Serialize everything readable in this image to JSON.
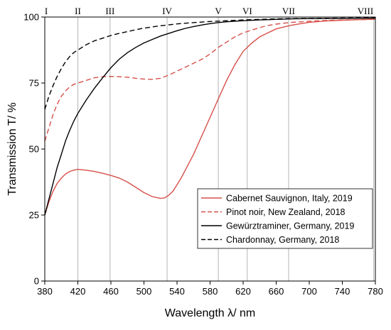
{
  "chart_data": {
    "type": "line",
    "xlabel": "Wavelength λ/ nm",
    "ylabel": "Transmission T/ %",
    "xlim": [
      380,
      780
    ],
    "ylim": [
      0,
      100
    ],
    "x_ticks": [
      380,
      420,
      460,
      500,
      540,
      580,
      620,
      660,
      700,
      740,
      780
    ],
    "y_ticks": [
      0,
      25,
      50,
      75,
      100
    ],
    "grid": "vertical reference lines only at marked wavelengths",
    "legend_position": "bottom-right",
    "reference_lines": [
      {
        "label": "I",
        "x": 380
      },
      {
        "label": "II",
        "x": 420
      },
      {
        "label": "III",
        "x": 459
      },
      {
        "label": "IV",
        "x": 528
      },
      {
        "label": "V",
        "x": 590
      },
      {
        "label": "VI",
        "x": 625
      },
      {
        "label": "VII",
        "x": 675
      },
      {
        "label": "VIII",
        "x": 778
      }
    ],
    "series": [
      {
        "name": "Cabernet Sauvignon, Italy, 2019",
        "color": "#d6504a",
        "dash": "solid",
        "x": [
          380,
          385,
          390,
          395,
          400,
          405,
          410,
          415,
          420,
          430,
          440,
          450,
          460,
          470,
          480,
          490,
          500,
          510,
          520,
          525,
          530,
          535,
          540,
          545,
          550,
          560,
          570,
          580,
          590,
          600,
          610,
          620,
          630,
          640,
          650,
          660,
          670,
          680,
          690,
          700,
          720,
          740,
          760,
          780
        ],
        "y": [
          25,
          30,
          34,
          37,
          39,
          40.5,
          41.5,
          42,
          42.3,
          42,
          41.5,
          40.8,
          40,
          39,
          37.5,
          35.5,
          33.5,
          32,
          31.3,
          31.5,
          32.5,
          34,
          36.5,
          39,
          42,
          48,
          55,
          62,
          69,
          76,
          82,
          87,
          90,
          92.5,
          94,
          95.5,
          96.3,
          97,
          97.5,
          98,
          98.5,
          98.8,
          99,
          99.2
        ]
      },
      {
        "name": "Pinot noir, New Zealand, 2018",
        "color": "#d6504a",
        "dash": "dashed",
        "x": [
          380,
          385,
          390,
          395,
          400,
          405,
          410,
          415,
          420,
          430,
          440,
          450,
          460,
          470,
          480,
          490,
          500,
          510,
          520,
          530,
          540,
          550,
          560,
          570,
          580,
          590,
          600,
          610,
          620,
          630,
          640,
          650,
          660,
          670,
          680,
          700,
          720,
          740,
          760,
          780
        ],
        "y": [
          53,
          58,
          63,
          67,
          70,
          72,
          73.5,
          74.5,
          75,
          76,
          77,
          77.4,
          77.5,
          77.4,
          77.2,
          76.8,
          76.5,
          76.4,
          76.8,
          78,
          79.5,
          81,
          82.5,
          84,
          86,
          88.5,
          90.5,
          92.5,
          94,
          95,
          96,
          96.8,
          97.3,
          97.7,
          98,
          98.4,
          98.7,
          98.9,
          99,
          99.1
        ]
      },
      {
        "name": "Gewürztraminer, Germany, 2019",
        "color": "#000000",
        "dash": "solid",
        "x": [
          380,
          385,
          390,
          395,
          400,
          405,
          410,
          415,
          420,
          430,
          440,
          450,
          460,
          470,
          480,
          490,
          500,
          510,
          520,
          530,
          540,
          550,
          560,
          570,
          580,
          590,
          600,
          620,
          640,
          660,
          680,
          700,
          740,
          780
        ],
        "y": [
          25,
          31,
          37,
          43,
          48,
          53,
          57,
          60.5,
          63.5,
          68.5,
          73,
          77,
          80.8,
          84,
          86.5,
          88.5,
          90.2,
          91.5,
          92.8,
          93.8,
          94.8,
          95.7,
          96.4,
          97,
          97.5,
          97.9,
          98.2,
          98.6,
          98.9,
          99.1,
          99.3,
          99.4,
          99.5,
          99.6
        ]
      },
      {
        "name": "Chardonnay, Germany, 2018",
        "color": "#000000",
        "dash": "dashed",
        "x": [
          380,
          385,
          390,
          395,
          400,
          405,
          410,
          415,
          420,
          430,
          440,
          450,
          460,
          470,
          480,
          490,
          500,
          520,
          540,
          560,
          580,
          600,
          620,
          640,
          660,
          680,
          700,
          740,
          780
        ],
        "y": [
          65,
          70,
          74,
          77.5,
          80.5,
          83,
          85,
          86.5,
          87.5,
          89.5,
          91,
          92,
          93,
          93.8,
          94.5,
          95.2,
          95.8,
          96.7,
          97.4,
          97.9,
          98.3,
          98.6,
          98.9,
          99.1,
          99.3,
          99.4,
          99.5,
          99.6,
          99.7
        ]
      }
    ]
  }
}
